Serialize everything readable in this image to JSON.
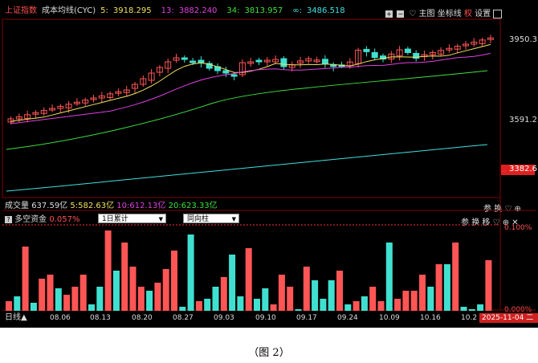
{
  "index_name": "上证指数",
  "cyc_label": "成本均线(CYC)",
  "cyc_legend": [
    {
      "label": "5:",
      "value": "3918.295",
      "color": "#f0e060"
    },
    {
      "label": "13:",
      "value": "3882.240",
      "color": "#e040e0"
    },
    {
      "label": "34:",
      "value": "3813.957",
      "color": "#40e040"
    },
    {
      "label": "∞:",
      "value": "3486.518",
      "color": "#40e0e0"
    }
  ],
  "top_controls": [
    "主图",
    "坐标线",
    "权",
    "设置"
  ],
  "price_axis": {
    "high": "3950.3",
    "mid": "3591.2",
    "current": "3382.6"
  },
  "volume_legend": {
    "label": "成交量",
    "total": "637.59亿",
    "ma": [
      {
        "label": "5:",
        "value": "582.63亿",
        "color": "#f0e060"
      },
      {
        "label": "10:",
        "value": "612.13亿",
        "color": "#e040e0"
      },
      {
        "label": "20:",
        "value": "623.33亿",
        "color": "#40e040"
      }
    ],
    "controls": [
      "参",
      "换"
    ]
  },
  "fund_panel": {
    "label": "多空资金",
    "value": "0.057%",
    "select_period": "1日累计",
    "select_type": "同向柱",
    "controls": [
      "参",
      "换",
      "移"
    ],
    "axis_top": "0.100%",
    "axis_bottom": "0.000%"
  },
  "x_axis": {
    "period_label": "日线",
    "dates": [
      "08.06",
      "08.13",
      "08.20",
      "08.27",
      "09.03",
      "09.10",
      "09.17",
      "09.24",
      "10.09",
      "10.16",
      "10.2"
    ],
    "current_date": "2025-11-04",
    "current_day": "二"
  },
  "caption": "（图 2）",
  "colors": {
    "up": "#ff5555",
    "down": "#40e0d0",
    "background": "#000000"
  },
  "chart_data": {
    "type": "candlestick",
    "fund_bars_up": [
      1,
      0,
      1,
      0,
      1,
      1,
      0,
      1,
      1,
      1,
      0,
      0,
      1,
      0,
      1,
      1,
      1,
      0,
      1,
      1,
      1,
      0,
      0,
      1,
      0,
      0,
      1,
      0,
      0,
      1,
      0,
      0,
      1,
      1,
      1,
      0,
      1,
      0,
      0,
      0,
      1,
      0,
      1,
      0,
      1,
      1,
      0,
      1,
      1,
      1,
      1,
      0,
      1,
      0,
      1,
      0,
      0,
      0,
      1
    ],
    "fund_bars_value": [
      0.012,
      0.018,
      0.08,
      0.01,
      0.04,
      0.045,
      0.028,
      0.02,
      0.03,
      0.045,
      0.008,
      0.03,
      0.1,
      0.05,
      0.085,
      0.055,
      0.03,
      0.025,
      0.035,
      0.052,
      0.075,
      0.005,
      0.095,
      0.012,
      0.015,
      0.03,
      0.042,
      0.07,
      0.018,
      0.078,
      0.015,
      0.028,
      0.008,
      0.045,
      0.03,
      0.002,
      0.055,
      0.038,
      0.015,
      0.038,
      0.05,
      0.008,
      0.012,
      0.018,
      0.03,
      0.012,
      0.085,
      0.015,
      0.025,
      0.025,
      0.045,
      0.03,
      0.058,
      0.058,
      0.085,
      0.005,
      0.002,
      0.008,
      0.063
    ]
  }
}
